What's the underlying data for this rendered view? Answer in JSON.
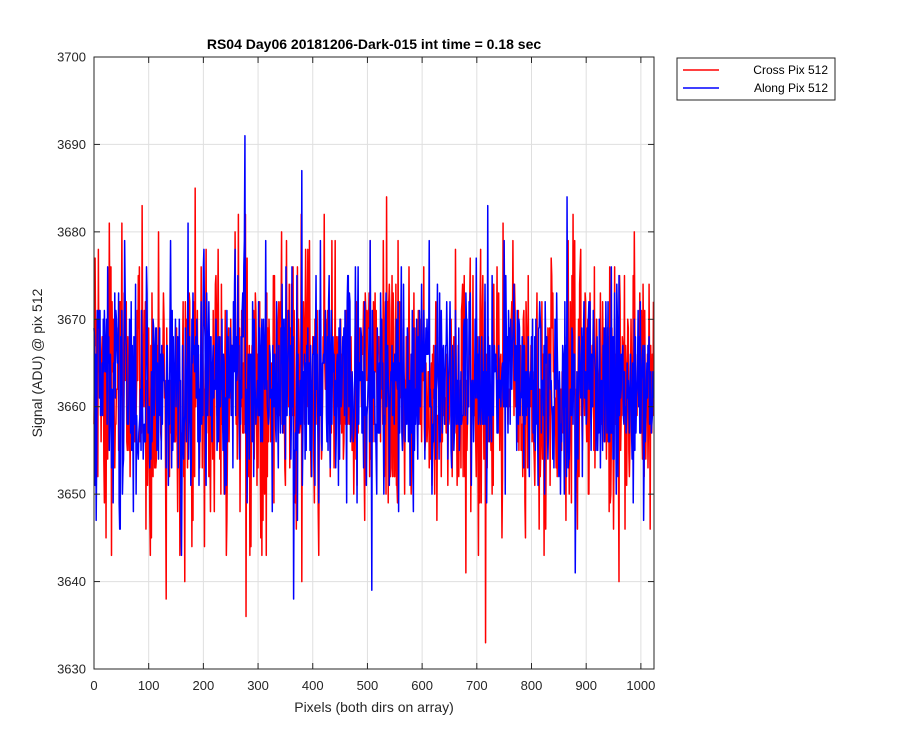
{
  "chart_data": {
    "type": "line",
    "title": "RS04 Day06 20181206-Dark-015 int time = 0.18 sec",
    "xlabel": "Pixels (both dirs on array)",
    "ylabel": "Signal (ADU) @ pix 512",
    "xlim": [
      0,
      1024
    ],
    "ylim": [
      3630,
      3700
    ],
    "xticks": [
      0,
      100,
      200,
      300,
      400,
      500,
      600,
      700,
      800,
      900,
      1000
    ],
    "yticks": [
      3630,
      3640,
      3650,
      3660,
      3670,
      3680,
      3690,
      3700
    ],
    "grid": true,
    "legend_position": "outside-top-right",
    "series": [
      {
        "name": "Cross Pix 512",
        "color": "#ff0000",
        "mean": 3662.5,
        "noise_range": [
          3643,
          3682
        ],
        "n_points": 1024,
        "notable_points": [
          {
            "x": 8,
            "y": 3678
          },
          {
            "x": 22,
            "y": 3645
          },
          {
            "x": 28,
            "y": 3681
          },
          {
            "x": 32,
            "y": 3643
          },
          {
            "x": 88,
            "y": 3683
          },
          {
            "x": 105,
            "y": 3645
          },
          {
            "x": 132,
            "y": 3638
          },
          {
            "x": 166,
            "y": 3640
          },
          {
            "x": 185,
            "y": 3685
          },
          {
            "x": 258,
            "y": 3680
          },
          {
            "x": 264,
            "y": 3682
          },
          {
            "x": 278,
            "y": 3636
          },
          {
            "x": 380,
            "y": 3640
          },
          {
            "x": 535,
            "y": 3684
          },
          {
            "x": 680,
            "y": 3641
          },
          {
            "x": 716,
            "y": 3633
          },
          {
            "x": 748,
            "y": 3681
          },
          {
            "x": 960,
            "y": 3640
          },
          {
            "x": 1015,
            "y": 3674
          }
        ]
      },
      {
        "name": "Along Pix 512",
        "color": "#0000ff",
        "mean": 3662.5,
        "noise_range": [
          3646,
          3679
        ],
        "n_points": 1024,
        "notable_points": [
          {
            "x": 4,
            "y": 3647
          },
          {
            "x": 48,
            "y": 3646
          },
          {
            "x": 140,
            "y": 3679
          },
          {
            "x": 160,
            "y": 3643
          },
          {
            "x": 172,
            "y": 3681
          },
          {
            "x": 276,
            "y": 3691
          },
          {
            "x": 365,
            "y": 3638
          },
          {
            "x": 380,
            "y": 3687
          },
          {
            "x": 508,
            "y": 3639
          },
          {
            "x": 720,
            "y": 3683
          },
          {
            "x": 865,
            "y": 3684
          },
          {
            "x": 880,
            "y": 3641
          },
          {
            "x": 1005,
            "y": 3647
          }
        ]
      }
    ]
  }
}
